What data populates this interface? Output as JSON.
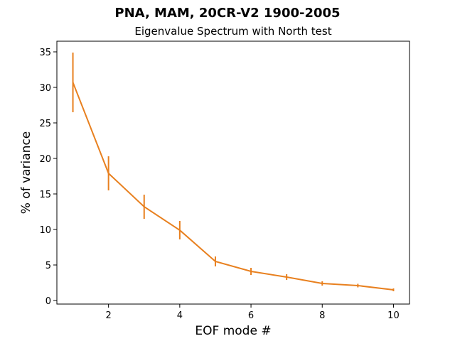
{
  "chart_data": {
    "type": "line",
    "title": "PNA, MAM, 20CR-V2 1900-2005",
    "subtitle": "Eigenvalue Spectrum with North test",
    "xlabel": "EOF mode #",
    "ylabel": "% of variance",
    "xlim": [
      0.55,
      10.45
    ],
    "ylim": [
      -0.5,
      36.5
    ],
    "xticks": [
      2,
      4,
      6,
      8,
      10
    ],
    "yticks": [
      0,
      5,
      10,
      15,
      20,
      25,
      30,
      35
    ],
    "grid": false,
    "color": "#e8801f",
    "x": [
      1,
      2,
      3,
      4,
      5,
      6,
      7,
      8,
      9,
      10
    ],
    "values": [
      30.7,
      17.9,
      13.2,
      9.9,
      5.5,
      4.1,
      3.3,
      2.4,
      2.1,
      1.5
    ],
    "error": [
      4.2,
      2.4,
      1.7,
      1.3,
      0.7,
      0.5,
      0.4,
      0.3,
      0.25,
      0.2
    ]
  }
}
